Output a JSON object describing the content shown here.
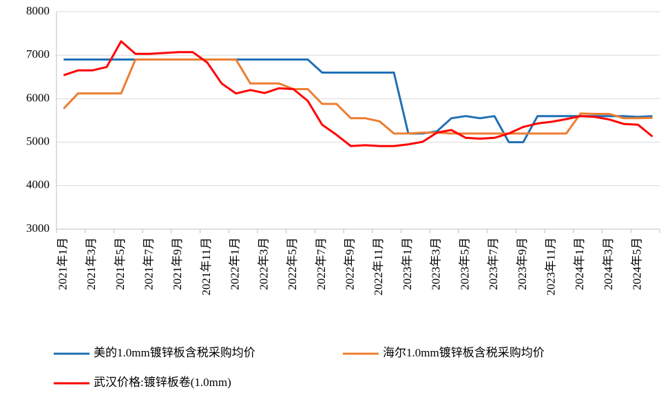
{
  "chart_data": {
    "type": "line",
    "categories": [
      "2021年1月",
      null,
      "2021年3月",
      null,
      "2021年5月",
      null,
      "2021年7月",
      null,
      "2021年9月",
      null,
      "2021年11月",
      null,
      "2022年1月",
      null,
      "2022年3月",
      null,
      "2022年5月",
      null,
      "2022年7月",
      null,
      "2022年9月",
      null,
      "2022年11月",
      null,
      "2023年1月",
      null,
      "2023年3月",
      null,
      "2023年5月",
      null,
      "2023年7月",
      null,
      "2023年9月",
      null,
      "2023年11月",
      null,
      "2024年1月",
      null,
      "2024年3月",
      null,
      "2024年5月",
      null
    ],
    "series": [
      {
        "name": "美的1.0mm镀锌板含税采购均价",
        "color": "#1f6fb4",
        "values": [
          6900,
          6900,
          6900,
          6900,
          6900,
          6900,
          6900,
          6900,
          6900,
          6900,
          6900,
          6900,
          6900,
          6900,
          6900,
          6900,
          6900,
          6900,
          6600,
          6600,
          6600,
          6600,
          6600,
          6600,
          5200,
          5200,
          5250,
          5550,
          5600,
          5550,
          5600,
          5000,
          5000,
          5600,
          5600,
          5600,
          5600,
          5600,
          5600,
          5600,
          5580,
          5600
        ]
      },
      {
        "name": "海尔1.0mm镀锌板含税采购均价",
        "color": "#ed7d31",
        "values": [
          5770,
          6120,
          6120,
          6120,
          6120,
          6900,
          6900,
          6900,
          6900,
          6900,
          6900,
          6900,
          6900,
          6350,
          6350,
          6350,
          6220,
          6220,
          5880,
          5880,
          5550,
          5550,
          5480,
          5200,
          5200,
          5220,
          5220,
          5200,
          5200,
          5200,
          5200,
          5200,
          5200,
          5200,
          5200,
          5200,
          5660,
          5650,
          5650,
          5550,
          5550,
          5560
        ]
      },
      {
        "name": "武汉价格:镀锌板卷(1.0mm)",
        "color": "#ff0000",
        "values": [
          6540,
          6650,
          6650,
          6730,
          7320,
          7030,
          7030,
          7050,
          7070,
          7070,
          6830,
          6350,
          6120,
          6200,
          6130,
          6240,
          6220,
          5950,
          5400,
          5170,
          4910,
          4930,
          4910,
          4910,
          4950,
          5010,
          5220,
          5280,
          5100,
          5080,
          5100,
          5200,
          5350,
          5430,
          5470,
          5530,
          5600,
          5580,
          5520,
          5420,
          5400,
          5130
        ]
      }
    ],
    "ylim": [
      3000,
      8000
    ],
    "yticks": [
      3000,
      4000,
      5000,
      6000,
      7000,
      8000
    ],
    "grid": true
  }
}
